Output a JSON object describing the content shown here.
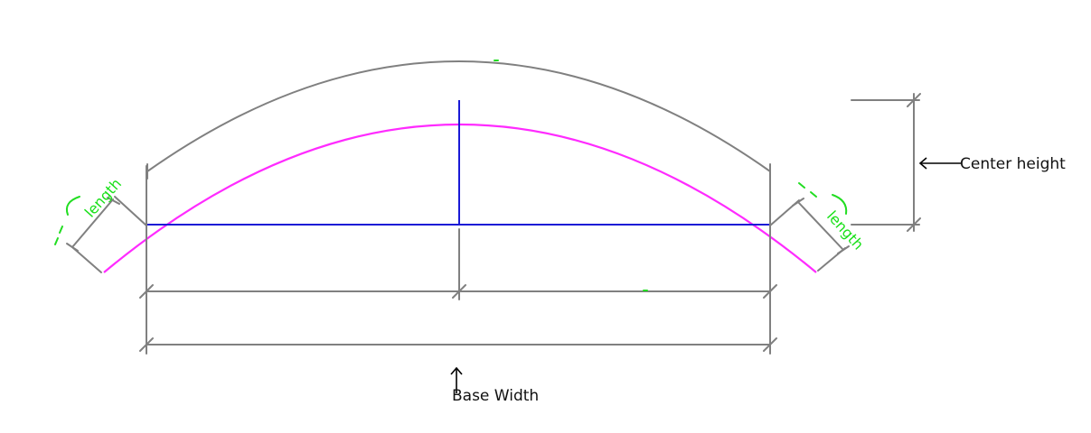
{
  "labels": {
    "center_height": "Center height",
    "base_width": "Base Width",
    "length_left": "length",
    "length_right": "length"
  },
  "colors": {
    "arc": "#ff2bff",
    "chord": "#1a1ad6",
    "dimension": "#808080",
    "length_marker": "#22dd22",
    "text": "#111111"
  }
}
